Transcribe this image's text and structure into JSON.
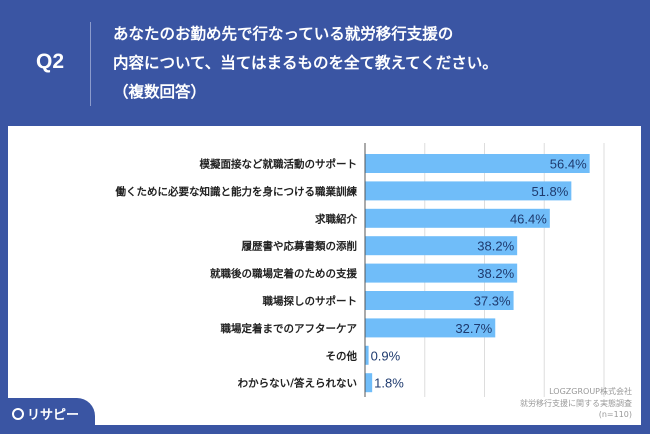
{
  "header": {
    "question": "Q2",
    "title_lines": [
      "あなたのお勤め先で行なっている就労移行支援の",
      "内容について、当てはまるものを全て教えてください。",
      "（複数回答）"
    ]
  },
  "logo": "リサピー",
  "source": {
    "company": "LOGZGROUP株式会社",
    "survey": "就労移行支援に関する実態調査",
    "n": "(n=110)"
  },
  "colors": {
    "background": "#3a55a3",
    "bar": "#70bdf9",
    "label": "#1e3a6e"
  },
  "chart_data": {
    "type": "bar",
    "orientation": "horizontal",
    "categories": [
      "模擬面接など就職活動のサポート",
      "働くために必要な知識と能力を身につける職業訓練",
      "求職紹介",
      "履歴書や応募書類の添削",
      "就職後の職場定着のための支援",
      "職場探しのサポート",
      "職場定着までのアフターケア",
      "その他",
      "わからない/答えられない"
    ],
    "values": [
      56.4,
      51.8,
      46.4,
      38.2,
      38.2,
      37.3,
      32.7,
      0.9,
      1.8
    ],
    "data_labels": [
      "56.4%",
      "51.8%",
      "46.4%",
      "38.2%",
      "38.2%",
      "37.3%",
      "32.7%",
      "0.9%",
      "1.8%"
    ],
    "xlim": [
      0,
      60
    ],
    "grid": true,
    "grid_step": 15
  }
}
